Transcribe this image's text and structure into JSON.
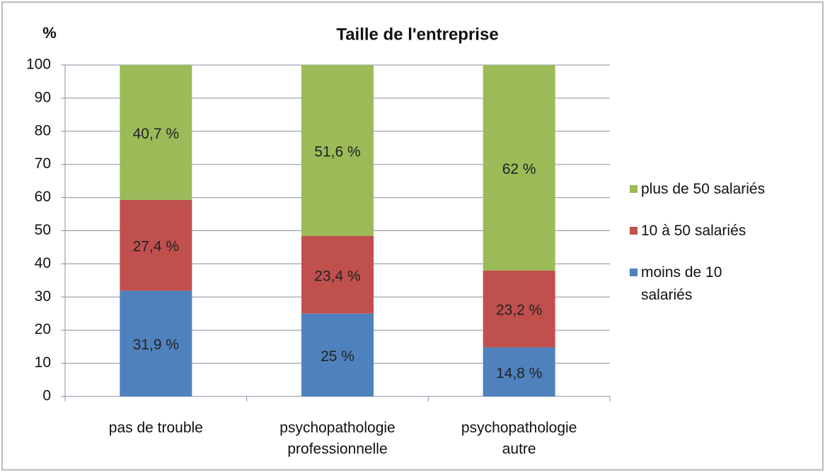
{
  "chart_data": {
    "type": "stacked_bar",
    "title": "Taille de l'entreprise",
    "y_label": "%",
    "categories": [
      "pas de trouble",
      "psychopathologie professionnelle",
      "psychopathologie autre"
    ],
    "series": [
      {
        "name": "moins de 10 salariés",
        "color": "#4f81bd",
        "values": [
          31.9,
          25,
          14.8
        ],
        "value_labels": [
          "31,9 %",
          "25 %",
          "14,8 %"
        ]
      },
      {
        "name": "10 à 50 salariés",
        "color": "#c0504d",
        "values": [
          27.4,
          23.4,
          23.2
        ],
        "value_labels": [
          "27,4 %",
          "23,4 %",
          "23,2 %"
        ]
      },
      {
        "name": "plus de 50 salariés",
        "color": "#9bbb59",
        "values": [
          40.7,
          51.6,
          62
        ],
        "value_labels": [
          "40,7 %",
          "51,6 %",
          "62 %"
        ]
      }
    ],
    "ylim": [
      0,
      100
    ],
    "yticks": [
      0,
      10,
      20,
      30,
      40,
      50,
      60,
      70,
      80,
      90,
      100
    ],
    "grid": true,
    "legend": "right"
  }
}
